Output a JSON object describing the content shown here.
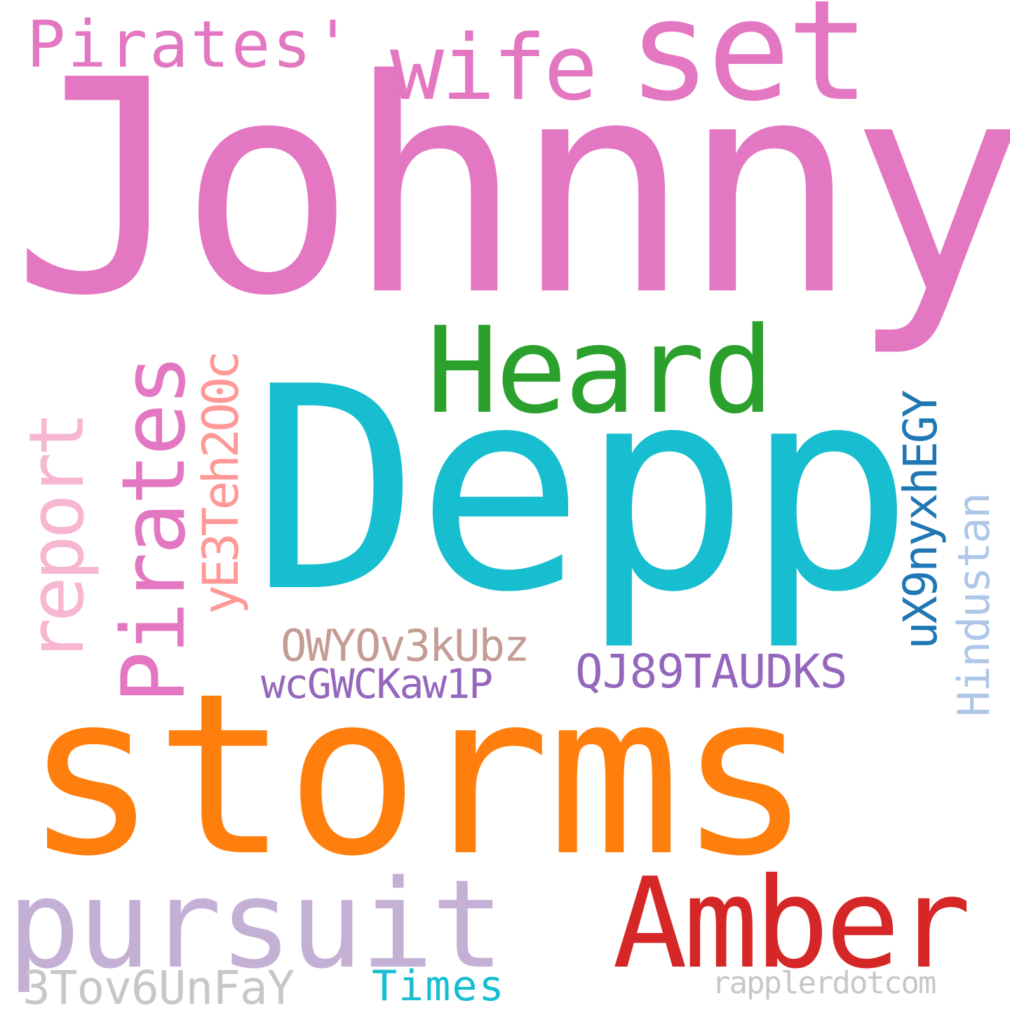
{
  "words": {
    "johnny": {
      "text": "Johnny",
      "color": "#e377c2"
    },
    "depp": {
      "text": "Depp",
      "color": "#17becf"
    },
    "storms": {
      "text": "storms",
      "color": "#ff7f0e"
    },
    "heard": {
      "text": "Heard",
      "color": "#2ca02c"
    },
    "amber": {
      "text": "Amber",
      "color": "#d62728"
    },
    "pursuit": {
      "text": "pursuit",
      "color": "#c5b0d5"
    },
    "set": {
      "text": "set",
      "color": "#e377c2"
    },
    "wife": {
      "text": "wife",
      "color": "#e377c2"
    },
    "pirates_apos": {
      "text": "Pirates'",
      "color": "#e377c2"
    },
    "pirates": {
      "text": "Pirates",
      "color": "#e377c2"
    },
    "report": {
      "text": "report",
      "color": "#f7b6d2"
    },
    "ye3": {
      "text": "yE3Teh2O0c",
      "color": "#ff9896"
    },
    "owy": {
      "text": "OWYOv3kUbz",
      "color": "#c49c94"
    },
    "wcg": {
      "text": "wcGWCKaw1P",
      "color": "#9467bd"
    },
    "qj8": {
      "text": "QJ89TAUDKS",
      "color": "#9467bd"
    },
    "ux9": {
      "text": "uX9nyxhEGY",
      "color": "#1f77b4"
    },
    "hindustan": {
      "text": "Hindustan",
      "color": "#aec7e8"
    },
    "tov": {
      "text": "3Tov6UnFaY",
      "color": "#c7c7c7"
    },
    "times": {
      "text": "Times",
      "color": "#17becf"
    },
    "rappler": {
      "text": "rapplerdotcom",
      "color": "#c7c7c7"
    }
  }
}
